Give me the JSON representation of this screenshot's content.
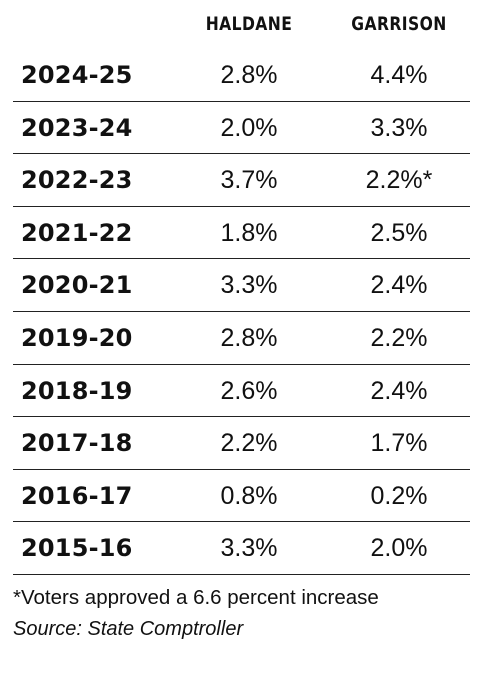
{
  "chart_data": {
    "type": "table",
    "columns": [
      "HALDANE",
      "GARRISON"
    ],
    "rows": [
      {
        "year": "2024-25",
        "haldane": "2.8%",
        "garrison": "4.4%"
      },
      {
        "year": "2023-24",
        "haldane": "2.0%",
        "garrison": "3.3%"
      },
      {
        "year": "2022-23",
        "haldane": "3.7%",
        "garrison": "2.2%*"
      },
      {
        "year": "2021-22",
        "haldane": "1.8%",
        "garrison": "2.5%"
      },
      {
        "year": "2020-21",
        "haldane": "3.3%",
        "garrison": "2.4%"
      },
      {
        "year": "2019-20",
        "haldane": "2.8%",
        "garrison": "2.2%"
      },
      {
        "year": "2018-19",
        "haldane": "2.6%",
        "garrison": "2.4%"
      },
      {
        "year": "2017-18",
        "haldane": "2.2%",
        "garrison": "1.7%"
      },
      {
        "year": "2016-17",
        "haldane": "0.8%",
        "garrison": "0.2%"
      },
      {
        "year": "2015-16",
        "haldane": "3.3%",
        "garrison": "2.0%"
      }
    ],
    "footnote": "*Voters approved a 6.6 percent increase",
    "source": "Source: State Comptroller"
  }
}
